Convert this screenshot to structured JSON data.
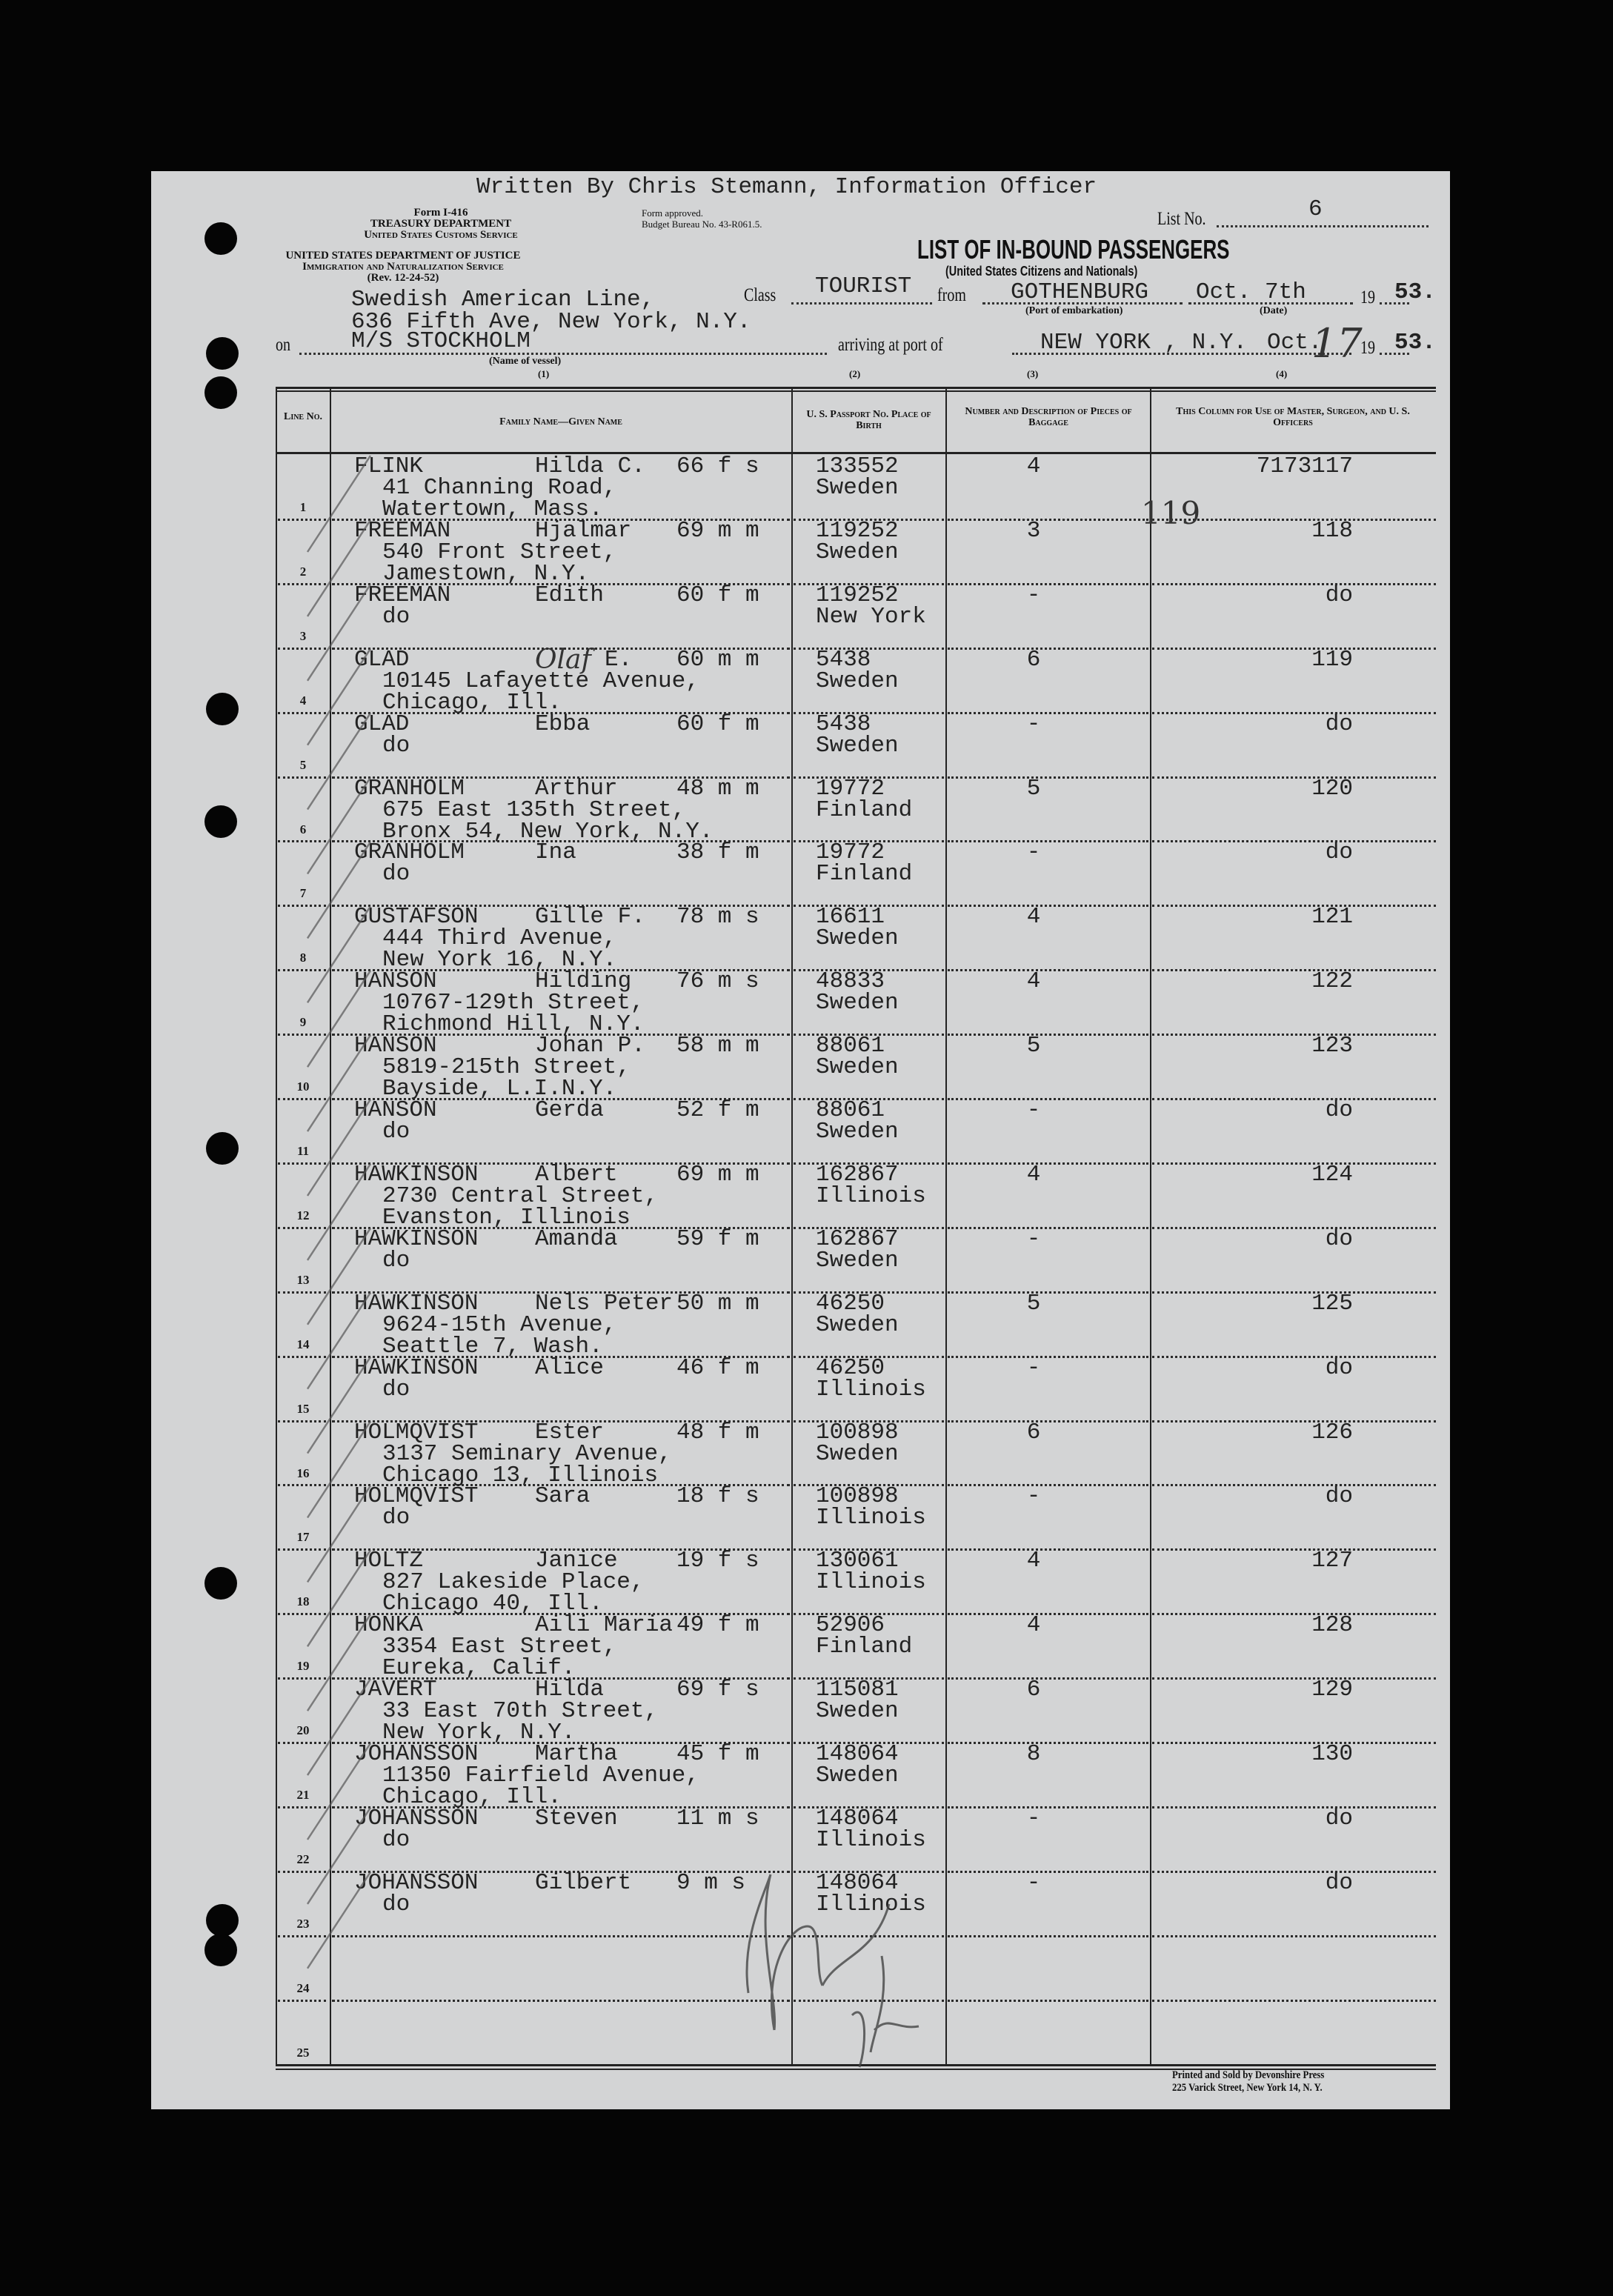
{
  "header": {
    "written_by": "Written By Chris Stemann, Information Officer",
    "form_block": [
      "Form I-416",
      "TREASURY DEPARTMENT",
      "United States Customs Service"
    ],
    "form_approved": [
      "Form approved.",
      "Budget Bureau No. 43-R061.5."
    ],
    "justice_block": [
      "UNITED STATES DEPARTMENT OF JUSTICE",
      "Immigration and Naturalization Service",
      "(Rev. 12-24-52)"
    ],
    "list_no_label": "List No.",
    "list_no": "6",
    "title": "LIST OF IN-BOUND PASSENGERS",
    "subtitle": "(United States Citizens and Nationals)",
    "agent_lines": [
      "Swedish American Line,",
      "636 Fifth Ave, New York, N.Y."
    ],
    "class_label": "Class",
    "class_value": "TOURIST",
    "from_label": "from",
    "port_embarkation": "GOTHENBURG",
    "departure_date": "Oct. 7th",
    "year_prefix": "19",
    "departure_year": "53.",
    "port_embarkation_caption": "(Port of embarkation)",
    "date_caption": "(Date)",
    "on_label": "on",
    "vessel": "M/S STOCKHOLM",
    "vessel_caption": "(Name of vessel)",
    "arriving_label": "arriving at port of",
    "arrival_port": "NEW YORK , N.Y.",
    "arrival_month": "Oct.",
    "arrival_day_handwritten": "17",
    "arrival_year": "53.",
    "col_numbers": [
      "(1)",
      "(2)",
      "(3)",
      "(4)"
    ]
  },
  "table": {
    "columns": [
      "Line No.",
      "Family Name—Given Name",
      "U. S. Passport No. Place of Birth",
      "Number and Description of Pieces of Baggage",
      "This Column for Use of Master, Surgeon, and U. S. Officers"
    ],
    "line_numbers": [
      "1",
      "2",
      "3",
      "4",
      "5",
      "6",
      "7",
      "8",
      "9",
      "10",
      "11",
      "12",
      "13",
      "14",
      "15",
      "16",
      "17",
      "18",
      "19",
      "20",
      "21",
      "22",
      "23",
      "24",
      "25"
    ],
    "handwritten_note_row1": "119",
    "passengers": [
      {
        "surname": "FLINK",
        "given": "Hilda C.",
        "age_sex_status": "66 f s",
        "address": [
          "41 Channing Road,",
          "Watertown, Mass."
        ],
        "passport": "133552",
        "birthplace": "Sweden",
        "baggage": "4",
        "officer": "7173117"
      },
      {
        "surname": "FREEMAN",
        "given": "Hjalmar",
        "age_sex_status": "69 m m",
        "address": [
          "540 Front Street,",
          "Jamestown, N.Y."
        ],
        "passport": "119252",
        "birthplace": "Sweden",
        "baggage": "3",
        "officer": "118"
      },
      {
        "surname": "FREEMAN",
        "given": "Edith",
        "age_sex_status": "60 f m",
        "address": [
          "do"
        ],
        "passport": "119252",
        "birthplace": "New York",
        "baggage": "-",
        "officer": "do"
      },
      {
        "surname": "GLAD",
        "given_handwritten": "Olaf",
        "given": "E.",
        "age_sex_status": "60 m m",
        "address": [
          "10145 Lafayette Avenue,",
          "Chicago, Ill."
        ],
        "passport": "5438",
        "birthplace": "Sweden",
        "baggage": "6",
        "officer": "119"
      },
      {
        "surname": "GLAD",
        "given": "Ebba",
        "age_sex_status": "60 f m",
        "address": [
          "do"
        ],
        "passport": "5438",
        "birthplace": "Sweden",
        "baggage": "-",
        "officer": "do"
      },
      {
        "surname": "GRANHOLM",
        "given": "Arthur",
        "age_sex_status": "48 m m",
        "address": [
          "675 East 135th Street,",
          "Bronx 54, New York, N.Y."
        ],
        "passport": "19772",
        "birthplace": "Finland",
        "baggage": "5",
        "officer": "120"
      },
      {
        "surname": "GRANHOLM",
        "given": "Ina",
        "age_sex_status": "38 f m",
        "address": [
          "do"
        ],
        "passport": "19772",
        "birthplace": "Finland",
        "baggage": "-",
        "officer": "do"
      },
      {
        "surname": "GUSTAFSON",
        "given": "Gille F.",
        "age_sex_status": "78 m s",
        "address": [
          "444 Third Avenue,",
          "New York 16, N.Y."
        ],
        "passport": "16611",
        "birthplace": "Sweden",
        "baggage": "4",
        "officer": "121"
      },
      {
        "surname": "HANSON",
        "given": "Hilding",
        "age_sex_status": "76 m s",
        "address": [
          "10767-129th Street,",
          "Richmond Hill, N.Y."
        ],
        "passport": "48833",
        "birthplace": "Sweden",
        "baggage": "4",
        "officer": "122"
      },
      {
        "surname": "HANSON",
        "given": "Johan P.",
        "age_sex_status": "58 m m",
        "address": [
          "5819-215th Street,",
          "Bayside, L.I.N.Y."
        ],
        "passport": "88061",
        "birthplace": "Sweden",
        "baggage": "5",
        "officer": "123"
      },
      {
        "surname": "HANSON",
        "given": "Gerda",
        "age_sex_status": "52 f m",
        "address": [
          "do"
        ],
        "passport": "88061",
        "birthplace": "Sweden",
        "baggage": "-",
        "officer": "do"
      },
      {
        "surname": "HAWKINSON",
        "given": "Albert",
        "age_sex_status": "69 m m",
        "address": [
          "2730 Central Street,",
          "Evanston, Illinois"
        ],
        "passport": "162867",
        "birthplace": "Illinois",
        "baggage": "4",
        "officer": "124"
      },
      {
        "surname": "HAWKINSON",
        "given": "Amanda",
        "age_sex_status": "59 f m",
        "address": [
          "do"
        ],
        "passport": "162867",
        "birthplace": "Sweden",
        "baggage": "-",
        "officer": "do"
      },
      {
        "surname": "HAWKINSON",
        "given": "Nels Peter",
        "age_sex_status": "50 m m",
        "address": [
          "9624-15th Avenue,",
          "Seattle 7, Wash."
        ],
        "passport": "46250",
        "birthplace": "Sweden",
        "baggage": "5",
        "officer": "125"
      },
      {
        "surname": "HAWKINSON",
        "given": "Alice",
        "age_sex_status": "46 f m",
        "address": [
          "do"
        ],
        "passport": "46250",
        "birthplace": "Illinois",
        "baggage": "-",
        "officer": "do"
      },
      {
        "surname": "HOLMQVIST",
        "given": "Ester",
        "age_sex_status": "48 f m",
        "address": [
          "3137 Seminary Avenue,",
          "Chicago 13, Illinois"
        ],
        "passport": "100898",
        "birthplace": "Sweden",
        "baggage": "6",
        "officer": "126"
      },
      {
        "surname": "HOLMQVIST",
        "given": "Sara",
        "age_sex_status": "18 f s",
        "address": [
          "do"
        ],
        "passport": "100898",
        "birthplace": "Illinois",
        "baggage": "-",
        "officer": "do"
      },
      {
        "surname": "HOLTZ",
        "given": "Janice",
        "age_sex_status": "19 f s",
        "address": [
          "827 Lakeside Place,",
          "Chicago 40, Ill."
        ],
        "passport": "130061",
        "birthplace": "Illinois",
        "baggage": "4",
        "officer": "127"
      },
      {
        "surname": "HONKA",
        "given": "Aili Maria",
        "age_sex_status": "49 f m",
        "address": [
          "3354 East Street,",
          "Eureka, Calif."
        ],
        "passport": "52906",
        "birthplace": "Finland",
        "baggage": "4",
        "officer": "128"
      },
      {
        "surname": "JAVERT",
        "given": "Hilda",
        "age_sex_status": "69 f s",
        "address": [
          "33 East 70th Street,",
          "New York, N.Y."
        ],
        "passport": "115081",
        "birthplace": "Sweden",
        "baggage": "6",
        "officer": "129"
      },
      {
        "surname": "JOHANSSON",
        "given": "Martha",
        "age_sex_status": "45 f m",
        "address": [
          "11350 Fairfield Avenue,",
          "Chicago, Ill."
        ],
        "passport": "148064",
        "birthplace": "Sweden",
        "baggage": "8",
        "officer": "130"
      },
      {
        "surname": "JOHANSSON",
        "given": "Steven",
        "age_sex_status": "11 m s",
        "address": [
          "do"
        ],
        "passport": "148064",
        "birthplace": "Illinois",
        "baggage": "-",
        "officer": "do"
      },
      {
        "surname": "JOHANSSON",
        "given": "Gilbert",
        "age_sex_status": "9 m s",
        "address": [
          "do"
        ],
        "passport": "148064",
        "birthplace": "Illinois",
        "baggage": "-",
        "officer": "do"
      }
    ]
  },
  "footer": {
    "printer": [
      "Printed and Sold by Devonshire Press",
      "225 Varick Street, New York 14, N. Y."
    ]
  },
  "colors": {
    "paper": "#d3d4d5",
    "background": "#050505",
    "ink": "#222222"
  }
}
